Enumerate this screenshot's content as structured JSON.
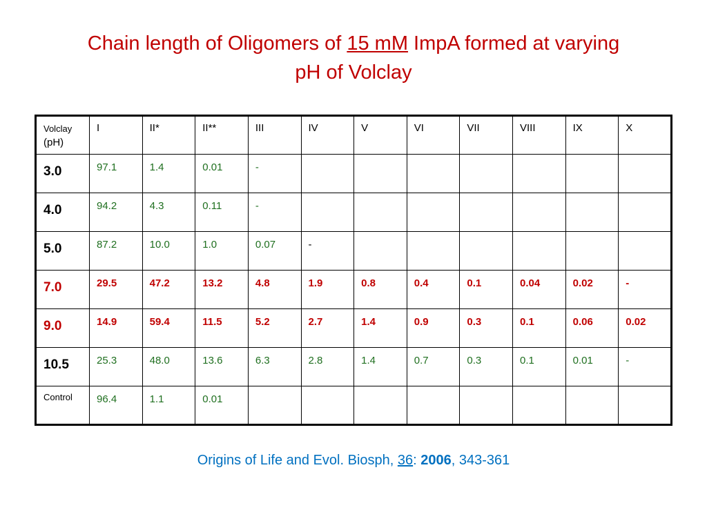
{
  "title": {
    "line1_prefix": "Chain length of Oligomers of ",
    "line1_underlined": "15 mM",
    "line1_suffix": " ImpA formed at varying",
    "line2": "pH of Volclay"
  },
  "table": {
    "corner_line1": "Volclay",
    "corner_line2": "(pH)",
    "columns": [
      "I",
      "II*",
      "II**",
      "III",
      "IV",
      "V",
      "VI",
      "VII",
      "VIII",
      "IX",
      "X"
    ],
    "rows": [
      {
        "ph": "3.0",
        "values": [
          "97.1",
          "1.4",
          "0.01",
          "-",
          "",
          "",
          "",
          "",
          "",
          "",
          ""
        ]
      },
      {
        "ph": "4.0",
        "values": [
          "94.2",
          "4.3",
          "0.11",
          "-",
          "",
          "",
          "",
          "",
          "",
          "",
          ""
        ]
      },
      {
        "ph": "5.0",
        "values": [
          "87.2",
          "10.0",
          "1.0",
          "0.07",
          "-",
          "",
          "",
          "",
          "",
          "",
          ""
        ]
      },
      {
        "ph": "7.0",
        "values": [
          "29.5",
          "47.2",
          "13.2",
          "4.8",
          "1.9",
          "0.8",
          "0.4",
          "0.1",
          "0.04",
          "0.02",
          "-"
        ]
      },
      {
        "ph": "9.0",
        "values": [
          "14.9",
          "59.4",
          "11.5",
          "5.2",
          "2.7",
          "1.4",
          "0.9",
          "0.3",
          "0.1",
          "0.06",
          "0.02"
        ]
      },
      {
        "ph": "10.5",
        "values": [
          "25.3",
          "48.0",
          "13.6",
          "6.3",
          "2.8",
          "1.4",
          "0.7",
          "0.3",
          "0.1",
          "0.01",
          "-"
        ]
      },
      {
        "ph": "Control",
        "values": [
          "96.4",
          "1.1",
          "0.01",
          "",
          "",
          "",
          "",
          "",
          "",
          "",
          ""
        ]
      }
    ]
  },
  "citation": {
    "prefix": "Origins of Life and Evol. Biosph, ",
    "volume": "36",
    "sep": ": ",
    "year": "2006",
    "pages": ", 343-361"
  },
  "colors": {
    "title": "#c00000",
    "highlight_rows": "#c00000",
    "values_green": "#1f6f1f",
    "citation": "#0070c0"
  }
}
